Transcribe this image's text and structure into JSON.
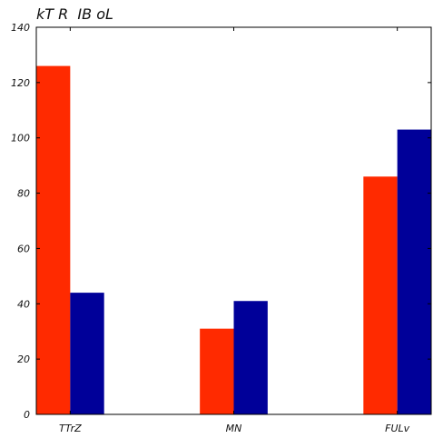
{
  "chart_data": {
    "type": "bar",
    "title": "kT R  IB oL",
    "categories": [
      "TTrZ",
      "MN",
      "FULv"
    ],
    "series": [
      {
        "values": [
          126,
          31,
          86
        ],
        "color": "#ff2a00"
      },
      {
        "values": [
          44,
          41,
          103
        ],
        "color": "#000099"
      }
    ],
    "ylim": [
      0,
      140
    ],
    "yticks": [
      0,
      20,
      40,
      60,
      80,
      100,
      120,
      140
    ],
    "xlabel": "",
    "ylabel": "",
    "grid": false,
    "legend": "none"
  }
}
